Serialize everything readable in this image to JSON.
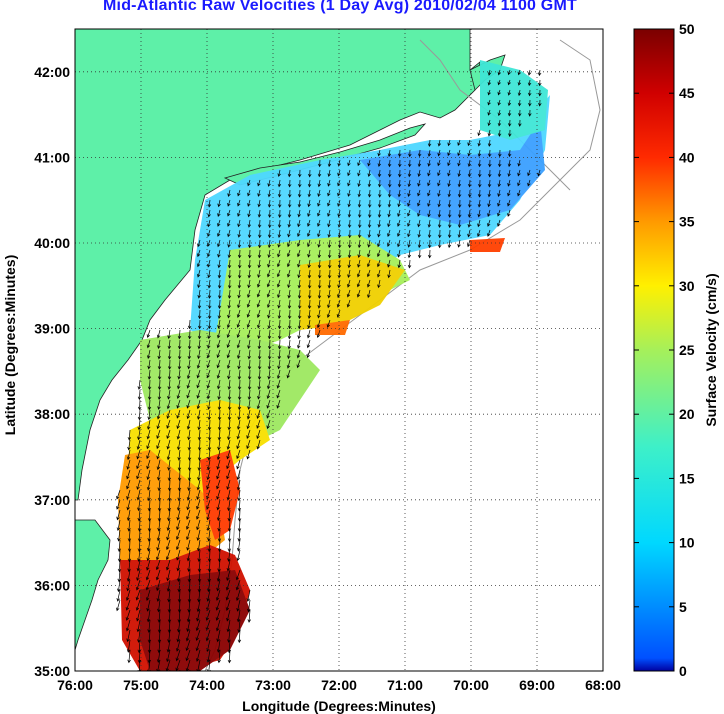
{
  "title": "Mid-Atlantic Raw Velocities (1 Day Avg) 2010/02/04 1100 GMT",
  "map": {
    "xlabel": "Longitude (Degrees:Minutes)",
    "ylabel": "Latitude (Degrees:Minutes)",
    "lon_range": [
      -76,
      -68
    ],
    "lat_range": [
      35,
      42.5
    ],
    "x_ticks": [
      "76:00",
      "75:00",
      "74:00",
      "73:00",
      "72:00",
      "71:00",
      "70:00",
      "69:00",
      "68:00"
    ],
    "y_ticks": [
      "35:00",
      "36:00",
      "37:00",
      "38:00",
      "39:00",
      "40:00",
      "41:00",
      "42:00"
    ],
    "land_color": "#5ef0a8",
    "grid": "dotted"
  },
  "colorbar": {
    "label": "Surface Velocity (cm/s)",
    "min": 0,
    "max": 50,
    "ticks": [
      "0",
      "5",
      "10",
      "15",
      "20",
      "25",
      "30",
      "35",
      "40",
      "45",
      "50"
    ],
    "colormap": "jet"
  }
}
